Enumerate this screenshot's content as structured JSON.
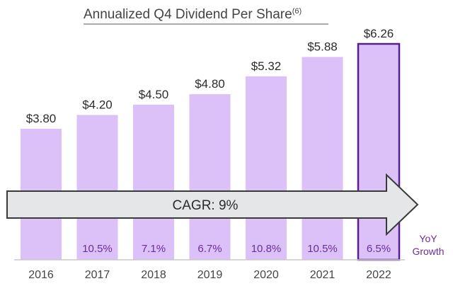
{
  "chart_data": {
    "type": "bar",
    "title": "Annualized Q4 Dividend Per Share",
    "title_superscript": "(6)",
    "categories": [
      "2016",
      "2017",
      "2018",
      "2019",
      "2020",
      "2021",
      "2022"
    ],
    "values": [
      3.8,
      4.2,
      4.5,
      4.8,
      5.32,
      5.88,
      6.26
    ],
    "value_labels": [
      "$3.80",
      "$4.20",
      "$4.50",
      "$4.80",
      "$5.32",
      "$5.88",
      "$6.26"
    ],
    "yoy_growth": [
      "",
      "10.5%",
      "7.1%",
      "6.7%",
      "10.8%",
      "10.5%",
      "6.5%"
    ],
    "yoy_label_line1": "YoY",
    "yoy_label_line2": "Growth",
    "cagr_label": "CAGR: 9%",
    "highlighted_category": "2022",
    "ylim": [
      0,
      6.26
    ],
    "xlabel": "",
    "ylabel": ""
  },
  "colors": {
    "bar_fill": "#dcc1f8",
    "bar_highlight_stroke": "#5b1f8a",
    "arrow_fill": "#e4e6e8",
    "arrow_stroke": "#3a3a3a",
    "axis_line": "#c8c8c8",
    "growth_text": "#6a2e9a"
  }
}
